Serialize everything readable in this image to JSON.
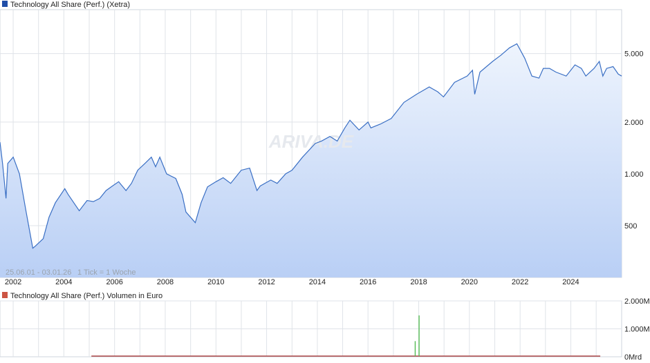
{
  "chart_data": [
    {
      "type": "area",
      "title": "Technology All Share (Perf.) (Xetra)",
      "subtitle": "",
      "range_label": "25.06.01 - 03.01.26",
      "tick_note": "1 Tick = 1 Woche",
      "watermark": "ARIVA.DE",
      "legend_position": "top-left",
      "grid": true,
      "y_scale": "log",
      "ylim": [
        250,
        9000
      ],
      "xlim": [
        "2001-06-25",
        "2026-01-03"
      ],
      "x_ticks": [
        "2002",
        "2004",
        "2006",
        "2008",
        "2010",
        "2012",
        "2014",
        "2016",
        "2018",
        "2020",
        "2022",
        "2024"
      ],
      "y_ticks": [
        {
          "value": 500,
          "label": "500"
        },
        {
          "value": 1000,
          "label": "1.000"
        },
        {
          "value": 2000,
          "label": "2.000"
        },
        {
          "value": 5000,
          "label": "5.000"
        }
      ],
      "colors": {
        "line": "#3a6fc4",
        "fill_top": "#eef4fd",
        "fill_bottom": "#b9cff5",
        "legend_box": "#1f4ea8"
      },
      "series": [
        {
          "name": "Technology All Share (Perf.) (Xetra)",
          "x": [
            "2001-06-25",
            "2001-08-01",
            "2001-09-20",
            "2001-10-15",
            "2002-01-01",
            "2002-04-01",
            "2002-07-01",
            "2002-10-10",
            "2002-11-15",
            "2003-03-10",
            "2003-06-01",
            "2003-09-01",
            "2004-01-15",
            "2004-03-01",
            "2004-08-10",
            "2004-12-01",
            "2005-03-01",
            "2005-06-01",
            "2005-09-01",
            "2005-12-01",
            "2006-03-01",
            "2006-06-15",
            "2006-09-01",
            "2006-12-01",
            "2007-03-15",
            "2007-06-15",
            "2007-08-15",
            "2007-10-15",
            "2008-01-20",
            "2008-06-01",
            "2008-09-01",
            "2008-10-25",
            "2009-03-09",
            "2009-06-01",
            "2009-09-01",
            "2010-01-01",
            "2010-04-15",
            "2010-08-01",
            "2011-01-01",
            "2011-05-01",
            "2011-08-15",
            "2011-10-01",
            "2012-03-01",
            "2012-06-01",
            "2012-10-01",
            "2013-01-01",
            "2013-06-01",
            "2013-12-01",
            "2014-03-01",
            "2014-07-01",
            "2014-10-15",
            "2015-02-01",
            "2015-04-15",
            "2015-08-25",
            "2016-01-01",
            "2016-02-11",
            "2016-07-01",
            "2016-12-01",
            "2017-06-01",
            "2017-12-01",
            "2018-06-01",
            "2018-10-01",
            "2018-12-24",
            "2019-06-01",
            "2019-12-01",
            "2020-02-15",
            "2020-03-18",
            "2020-06-01",
            "2020-12-01",
            "2021-04-01",
            "2021-08-01",
            "2021-11-15",
            "2022-03-08",
            "2022-06-20",
            "2022-09-30",
            "2022-12-01",
            "2023-03-01",
            "2023-06-01",
            "2023-10-27",
            "2024-03-01",
            "2024-06-01",
            "2024-08-05",
            "2024-12-01",
            "2025-02-15",
            "2025-04-07",
            "2025-06-01",
            "2025-09-01",
            "2025-11-15",
            "2026-01-03"
          ],
          "values": [
            1530,
            1150,
            720,
            1150,
            1250,
            1000,
            620,
            370,
            380,
            420,
            560,
            680,
            820,
            760,
            610,
            700,
            690,
            720,
            800,
            850,
            900,
            800,
            880,
            1050,
            1150,
            1250,
            1100,
            1250,
            1000,
            940,
            760,
            600,
            520,
            680,
            840,
            900,
            950,
            880,
            1050,
            1080,
            800,
            850,
            920,
            880,
            1000,
            1050,
            1250,
            1500,
            1550,
            1650,
            1550,
            1850,
            2050,
            1800,
            2000,
            1850,
            1950,
            2100,
            2600,
            2900,
            3200,
            3000,
            2800,
            3400,
            3700,
            4000,
            2900,
            3900,
            4500,
            4900,
            5400,
            5700,
            4700,
            3700,
            3600,
            4100,
            4100,
            3900,
            3700,
            4300,
            4100,
            3700,
            4100,
            4500,
            3700,
            4100,
            4200,
            3800,
            3700
          ]
        }
      ]
    },
    {
      "type": "bar",
      "title": "Technology All Share (Perf.) Volumen in Euro",
      "legend_position": "top-left",
      "grid": true,
      "ylim": [
        0,
        2000
      ],
      "y_unit": "Mrd",
      "y_ticks": [
        {
          "value": 0,
          "label": "0Mrd"
        },
        {
          "value": 1000,
          "label": "1.000Mrd"
        },
        {
          "value": 2000,
          "label": "2.000Mrd"
        }
      ],
      "colors": {
        "bar": "#55bb55",
        "baseline": "#aa4444",
        "legend_box": "#cc5544"
      },
      "series": [
        {
          "name": "Volumen",
          "x": [
            "2017-11-10",
            "2018-01-05"
          ],
          "values": [
            560,
            1480
          ]
        }
      ],
      "active_period": [
        "2005-02-01",
        "2025-03-01"
      ]
    }
  ]
}
